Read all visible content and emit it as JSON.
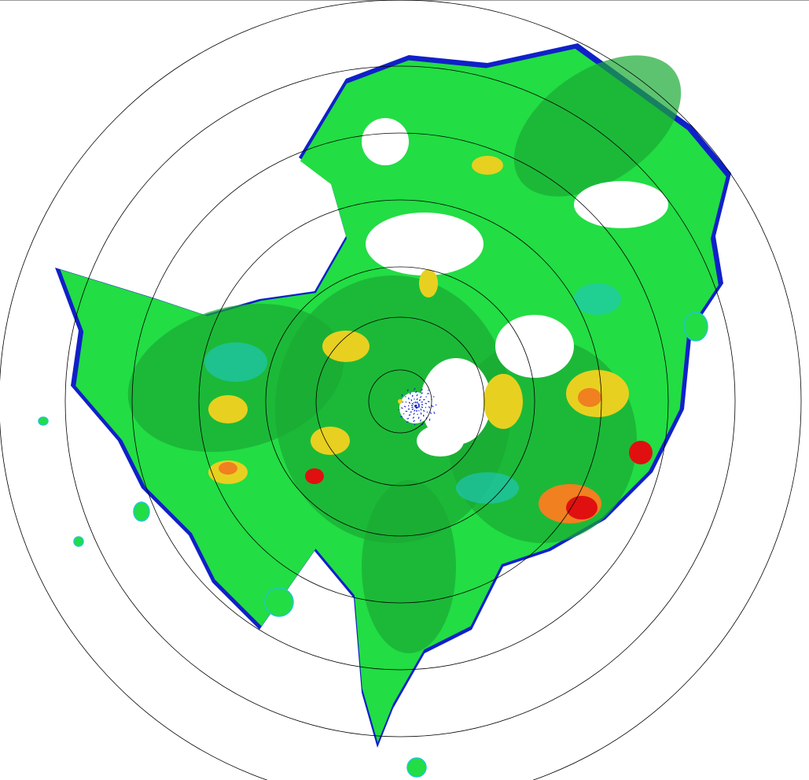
{
  "radar": {
    "product": "reflectivity-ppi",
    "range_ring_count": 7,
    "palette": {
      "weak_blue": "#1020c8",
      "cyan": "#20c8c8",
      "light_green": "#22dd44",
      "green": "#1aaa33",
      "yellow": "#e8d020",
      "orange": "#f08020",
      "red": "#e01010"
    },
    "ring_color": "#000000",
    "background": "#ffffff"
  }
}
